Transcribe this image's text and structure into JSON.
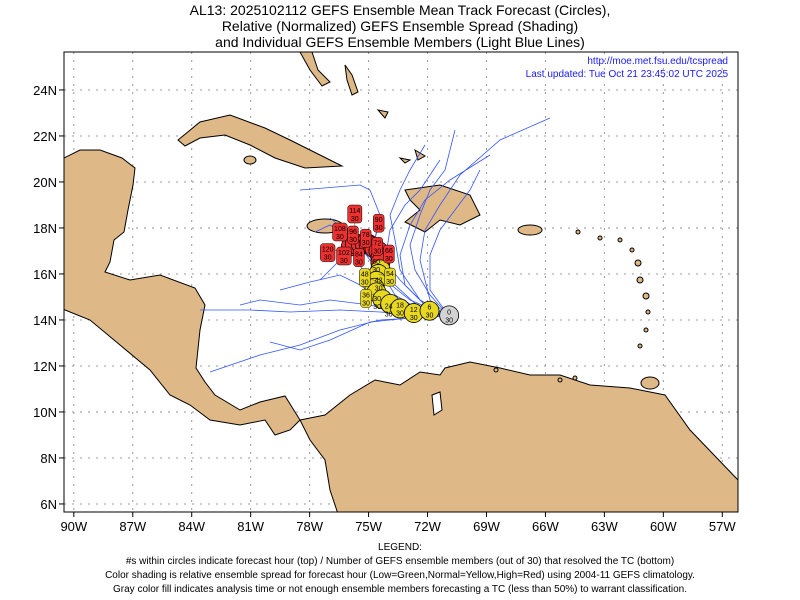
{
  "title": {
    "line1": "AL13: 2025102112 GEFS Ensemble Mean Track Forecast (Circles),",
    "line2": "Relative (Normalized) GEFS Ensemble Spread (Shading)",
    "line3": "and Individual GEFS Ensemble Members (Light Blue Lines)"
  },
  "credit": {
    "url": "http://moe.met.fsu.edu/tcspread",
    "updated": "Last updated: Tue Oct 21 23:45:02 UTC 2025"
  },
  "legend": {
    "heading": "LEGEND:",
    "line1": "#s within circles indicate forecast hour (top) / Number of GEFS ensemble members (out of 30) that resolved the TC (bottom)",
    "line2": "Color shading is relative ensemble spread for forecast hour (Low=Green,Normal=Yellow,High=Red) using 2004-11 GEFS climatology.",
    "line3": "Gray color fill indicates analysis time or not enough ensemble members forecasting a TC (less than 50%) to warrant classification."
  },
  "colors": {
    "land": "#deb887",
    "ocean": "#ffffff",
    "member": "#3355ff",
    "gray": "#d3d3d3",
    "normal": "#e8d820",
    "high": "#ee3030"
  },
  "chart_data": {
    "type": "scatter",
    "xlabel": "",
    "ylabel": "",
    "xlim": [
      -90.5,
      -56.2
    ],
    "ylim": [
      5.65,
      25.65
    ],
    "x_ticks": [
      "90W",
      "87W",
      "84W",
      "81W",
      "78W",
      "75W",
      "72W",
      "69W",
      "66W",
      "63W",
      "60W",
      "57W"
    ],
    "y_ticks": [
      "6N",
      "8N",
      "10N",
      "12N",
      "14N",
      "16N",
      "18N",
      "20N",
      "22N",
      "24N"
    ],
    "grid": true,
    "track": [
      {
        "hour": 0,
        "members": 30,
        "lon": -70.9,
        "lat": 14.2,
        "spread": "gray"
      },
      {
        "hour": 6,
        "members": 30,
        "lon": -71.9,
        "lat": 14.4,
        "spread": "normal"
      },
      {
        "hour": 12,
        "members": 30,
        "lon": -72.7,
        "lat": 14.3,
        "spread": "normal"
      },
      {
        "hour": 18,
        "members": 30,
        "lon": -73.4,
        "lat": 14.5,
        "spread": "normal"
      },
      {
        "hour": 24,
        "members": 30,
        "lon": -73.9,
        "lat": 14.7,
        "spread": "normal"
      },
      {
        "hour": 30,
        "members": 30,
        "lon": -74.3,
        "lat": 14.9,
        "spread": "normal"
      },
      {
        "hour": 36,
        "members": 30,
        "lon": -74.6,
        "lat": 15.2,
        "spread": "normal"
      },
      {
        "hour": 42,
        "members": 30,
        "lon": -74.7,
        "lat": 15.4,
        "spread": "normal"
      },
      {
        "hour": 48,
        "members": 30,
        "lon": -74.6,
        "lat": 15.7,
        "spread": "normal"
      },
      {
        "hour": 54,
        "members": 30,
        "lon": -74.5,
        "lat": 16.0,
        "spread": "normal"
      },
      {
        "hour": 60,
        "members": 30,
        "lon": -74.4,
        "lat": 16.2,
        "spread": "normal"
      },
      {
        "hour": 66,
        "members": 30,
        "lon": -74.4,
        "lat": 16.5,
        "spread": "high"
      },
      {
        "hour": 72,
        "members": 30,
        "lon": -74.4,
        "lat": 16.7,
        "spread": "high"
      },
      {
        "hour": 78,
        "members": 30,
        "lon": -74.5,
        "lat": 17.0,
        "spread": "high"
      },
      {
        "hour": 84,
        "members": 30,
        "lon": -74.7,
        "lat": 17.1,
        "spread": "high"
      },
      {
        "hour": 90,
        "members": 30,
        "lon": -74.8,
        "lat": 17.2,
        "spread": "high"
      },
      {
        "hour": 96,
        "members": 30,
        "lon": -75.0,
        "lat": 17.3,
        "spread": "high"
      },
      {
        "hour": 102,
        "members": 30,
        "lon": -75.2,
        "lat": 17.3,
        "spread": "high"
      },
      {
        "hour": 108,
        "members": 30,
        "lon": -75.4,
        "lat": 17.3,
        "spread": "high"
      },
      {
        "hour": 114,
        "members": 30,
        "lon": -75.7,
        "lat": 17.3,
        "spread": "high"
      },
      {
        "hour": 120,
        "members": 30,
        "lon": -75.9,
        "lat": 17.2,
        "spread": "high"
      }
    ]
  }
}
